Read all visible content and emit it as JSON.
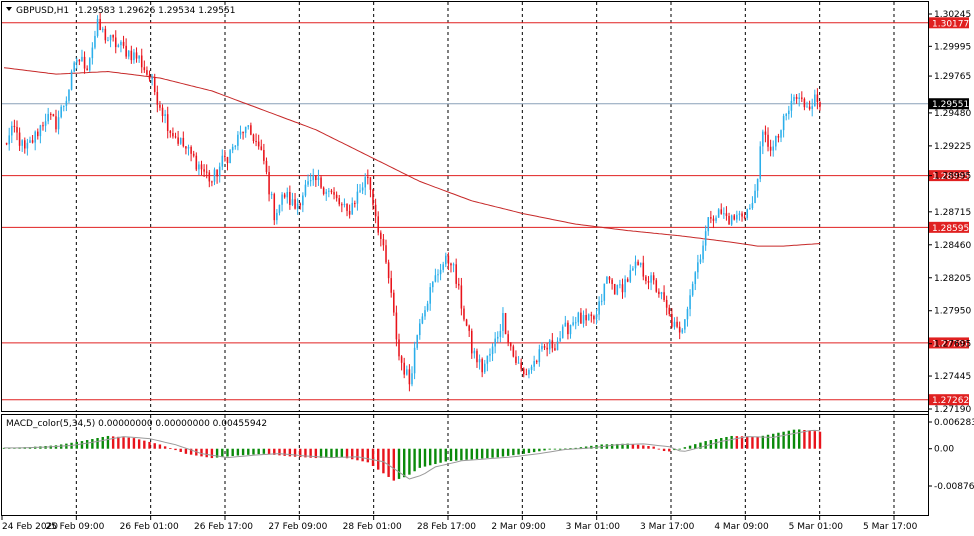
{
  "chart_data": [
    {
      "type": "candlestick",
      "symbol_label": "GBPUSD,H1",
      "ohlc_label": "1.29583 1.29626 1.29534 1.29551",
      "y_ticks": [
        "1.30245",
        "1.29995",
        "1.29765",
        "1.29480",
        "1.29225",
        "1.28995",
        "1.28715",
        "1.28460",
        "1.28205",
        "1.27950",
        "1.27695",
        "1.27445",
        "1.27190"
      ],
      "ylim": [
        1.2719,
        1.30245
      ],
      "current_price": "1.29551",
      "horizontal_levels": [
        "1.30177",
        "1.28995",
        "1.28595",
        "1.27701",
        "1.27262"
      ],
      "x_ticks": [
        "24 Feb 2020",
        "25 Feb 09:00",
        "26 Feb 01:00",
        "26 Feb 17:00",
        "27 Feb 09:00",
        "28 Feb 01:00",
        "28 Feb 17:00",
        "2 Mar 09:00",
        "3 Mar 01:00",
        "3 Mar 17:00",
        "4 Mar 09:00",
        "5 Mar 01:00",
        "5 Mar 17:00"
      ],
      "colors": {
        "bull": "#2aaeea",
        "bear": "#e8131b",
        "ma": "#c62828",
        "level": "#e02020",
        "current": "#000000",
        "grid": "#000000"
      },
      "close_path": [
        [
          0,
          1.2923
        ],
        [
          4,
          1.2935
        ],
        [
          8,
          1.2918
        ],
        [
          12,
          1.293
        ],
        [
          16,
          1.2945
        ],
        [
          20,
          1.294
        ],
        [
          24,
          1.296
        ],
        [
          28,
          1.299
        ],
        [
          32,
          1.2985
        ],
        [
          36,
          1.3015
        ],
        [
          40,
          1.3005
        ],
        [
          44,
          1.3
        ],
        [
          48,
          1.2995
        ],
        [
          52,
          1.299
        ],
        [
          56,
          1.2975
        ],
        [
          60,
          1.2955
        ],
        [
          64,
          1.2935
        ],
        [
          68,
          1.2925
        ],
        [
          72,
          1.2915
        ],
        [
          76,
          1.2905
        ],
        [
          80,
          1.2895
        ],
        [
          84,
          1.291
        ],
        [
          88,
          1.292
        ],
        [
          92,
          1.2935
        ],
        [
          96,
          1.293
        ],
        [
          100,
          1.291
        ],
        [
          104,
          1.287
        ],
        [
          108,
          1.2885
        ],
        [
          112,
          1.2875
        ],
        [
          116,
          1.289
        ],
        [
          120,
          1.2895
        ],
        [
          124,
          1.289
        ],
        [
          128,
          1.288
        ],
        [
          132,
          1.287
        ],
        [
          136,
          1.2885
        ],
        [
          140,
          1.29
        ],
        [
          144,
          1.286
        ],
        [
          148,
          1.282
        ],
        [
          152,
          1.276
        ],
        [
          156,
          1.274
        ],
        [
          160,
          1.279
        ],
        [
          164,
          1.281
        ],
        [
          168,
          1.283
        ],
        [
          172,
          1.2835
        ],
        [
          176,
          1.28
        ],
        [
          180,
          1.2765
        ],
        [
          184,
          1.275
        ],
        [
          188,
          1.2765
        ],
        [
          192,
          1.279
        ],
        [
          196,
          1.276
        ],
        [
          200,
          1.2745
        ],
        [
          204,
          1.2755
        ],
        [
          208,
          1.2765
        ],
        [
          212,
          1.277
        ],
        [
          216,
          1.278
        ],
        [
          220,
          1.279
        ],
        [
          224,
          1.2785
        ],
        [
          228,
          1.279
        ],
        [
          232,
          1.282
        ],
        [
          236,
          1.281
        ],
        [
          240,
          1.282
        ],
        [
          244,
          1.283
        ],
        [
          248,
          1.282
        ],
        [
          252,
          1.281
        ],
        [
          256,
          1.279
        ],
        [
          260,
          1.2775
        ],
        [
          264,
          1.281
        ],
        [
          268,
          1.284
        ],
        [
          272,
          1.287
        ],
        [
          276,
          1.287
        ],
        [
          280,
          1.2865
        ],
        [
          284,
          1.287
        ],
        [
          288,
          1.2875
        ],
        [
          292,
          1.293
        ],
        [
          296,
          1.292
        ],
        [
          300,
          1.294
        ],
        [
          304,
          1.296
        ],
        [
          308,
          1.2955
        ],
        [
          312,
          1.2958
        ],
        [
          314,
          1.2955
        ]
      ],
      "ma_path": [
        [
          0,
          1.2983
        ],
        [
          20,
          1.2978
        ],
        [
          40,
          1.298
        ],
        [
          60,
          1.2975
        ],
        [
          80,
          1.2965
        ],
        [
          100,
          1.295
        ],
        [
          120,
          1.2935
        ],
        [
          140,
          1.2915
        ],
        [
          160,
          1.2895
        ],
        [
          180,
          1.288
        ],
        [
          200,
          1.287
        ],
        [
          220,
          1.2862
        ],
        [
          240,
          1.2857
        ],
        [
          260,
          1.2853
        ],
        [
          280,
          1.2848
        ],
        [
          290,
          1.2845
        ],
        [
          300,
          1.2845
        ],
        [
          314,
          1.2847
        ]
      ],
      "indicator": {
        "label": "MACD_color(5,34,5) 0.00000000 0.00000000 0.00455942",
        "y_ticks": [
          "0.006283",
          "0.00",
          "-0.008765"
        ],
        "ylim": [
          -0.008765,
          0.006283
        ],
        "values": [
          [
            0,
            0.0002
          ],
          [
            10,
            0.0004
          ],
          [
            20,
            0.0008
          ],
          [
            30,
            0.0018
          ],
          [
            40,
            0.003
          ],
          [
            50,
            0.0025
          ],
          [
            60,
            0.001
          ],
          [
            70,
            -0.0012
          ],
          [
            80,
            -0.0022
          ],
          [
            90,
            -0.0016
          ],
          [
            100,
            -0.0012
          ],
          [
            110,
            -0.0018
          ],
          [
            120,
            -0.0022
          ],
          [
            130,
            -0.002
          ],
          [
            140,
            -0.0032
          ],
          [
            150,
            -0.0075
          ],
          [
            155,
            -0.0065
          ],
          [
            160,
            -0.0045
          ],
          [
            170,
            -0.003
          ],
          [
            180,
            -0.0025
          ],
          [
            190,
            -0.002
          ],
          [
            200,
            -0.0012
          ],
          [
            210,
            -0.0002
          ],
          [
            220,
            0.0002
          ],
          [
            230,
            0.001
          ],
          [
            240,
            0.0012
          ],
          [
            250,
            0.0005
          ],
          [
            255,
            -0.0008
          ],
          [
            260,
            0.0
          ],
          [
            270,
            0.0018
          ],
          [
            280,
            0.003
          ],
          [
            290,
            0.0028
          ],
          [
            300,
            0.004
          ],
          [
            305,
            0.0046
          ],
          [
            314,
            0.004
          ]
        ]
      }
    }
  ]
}
